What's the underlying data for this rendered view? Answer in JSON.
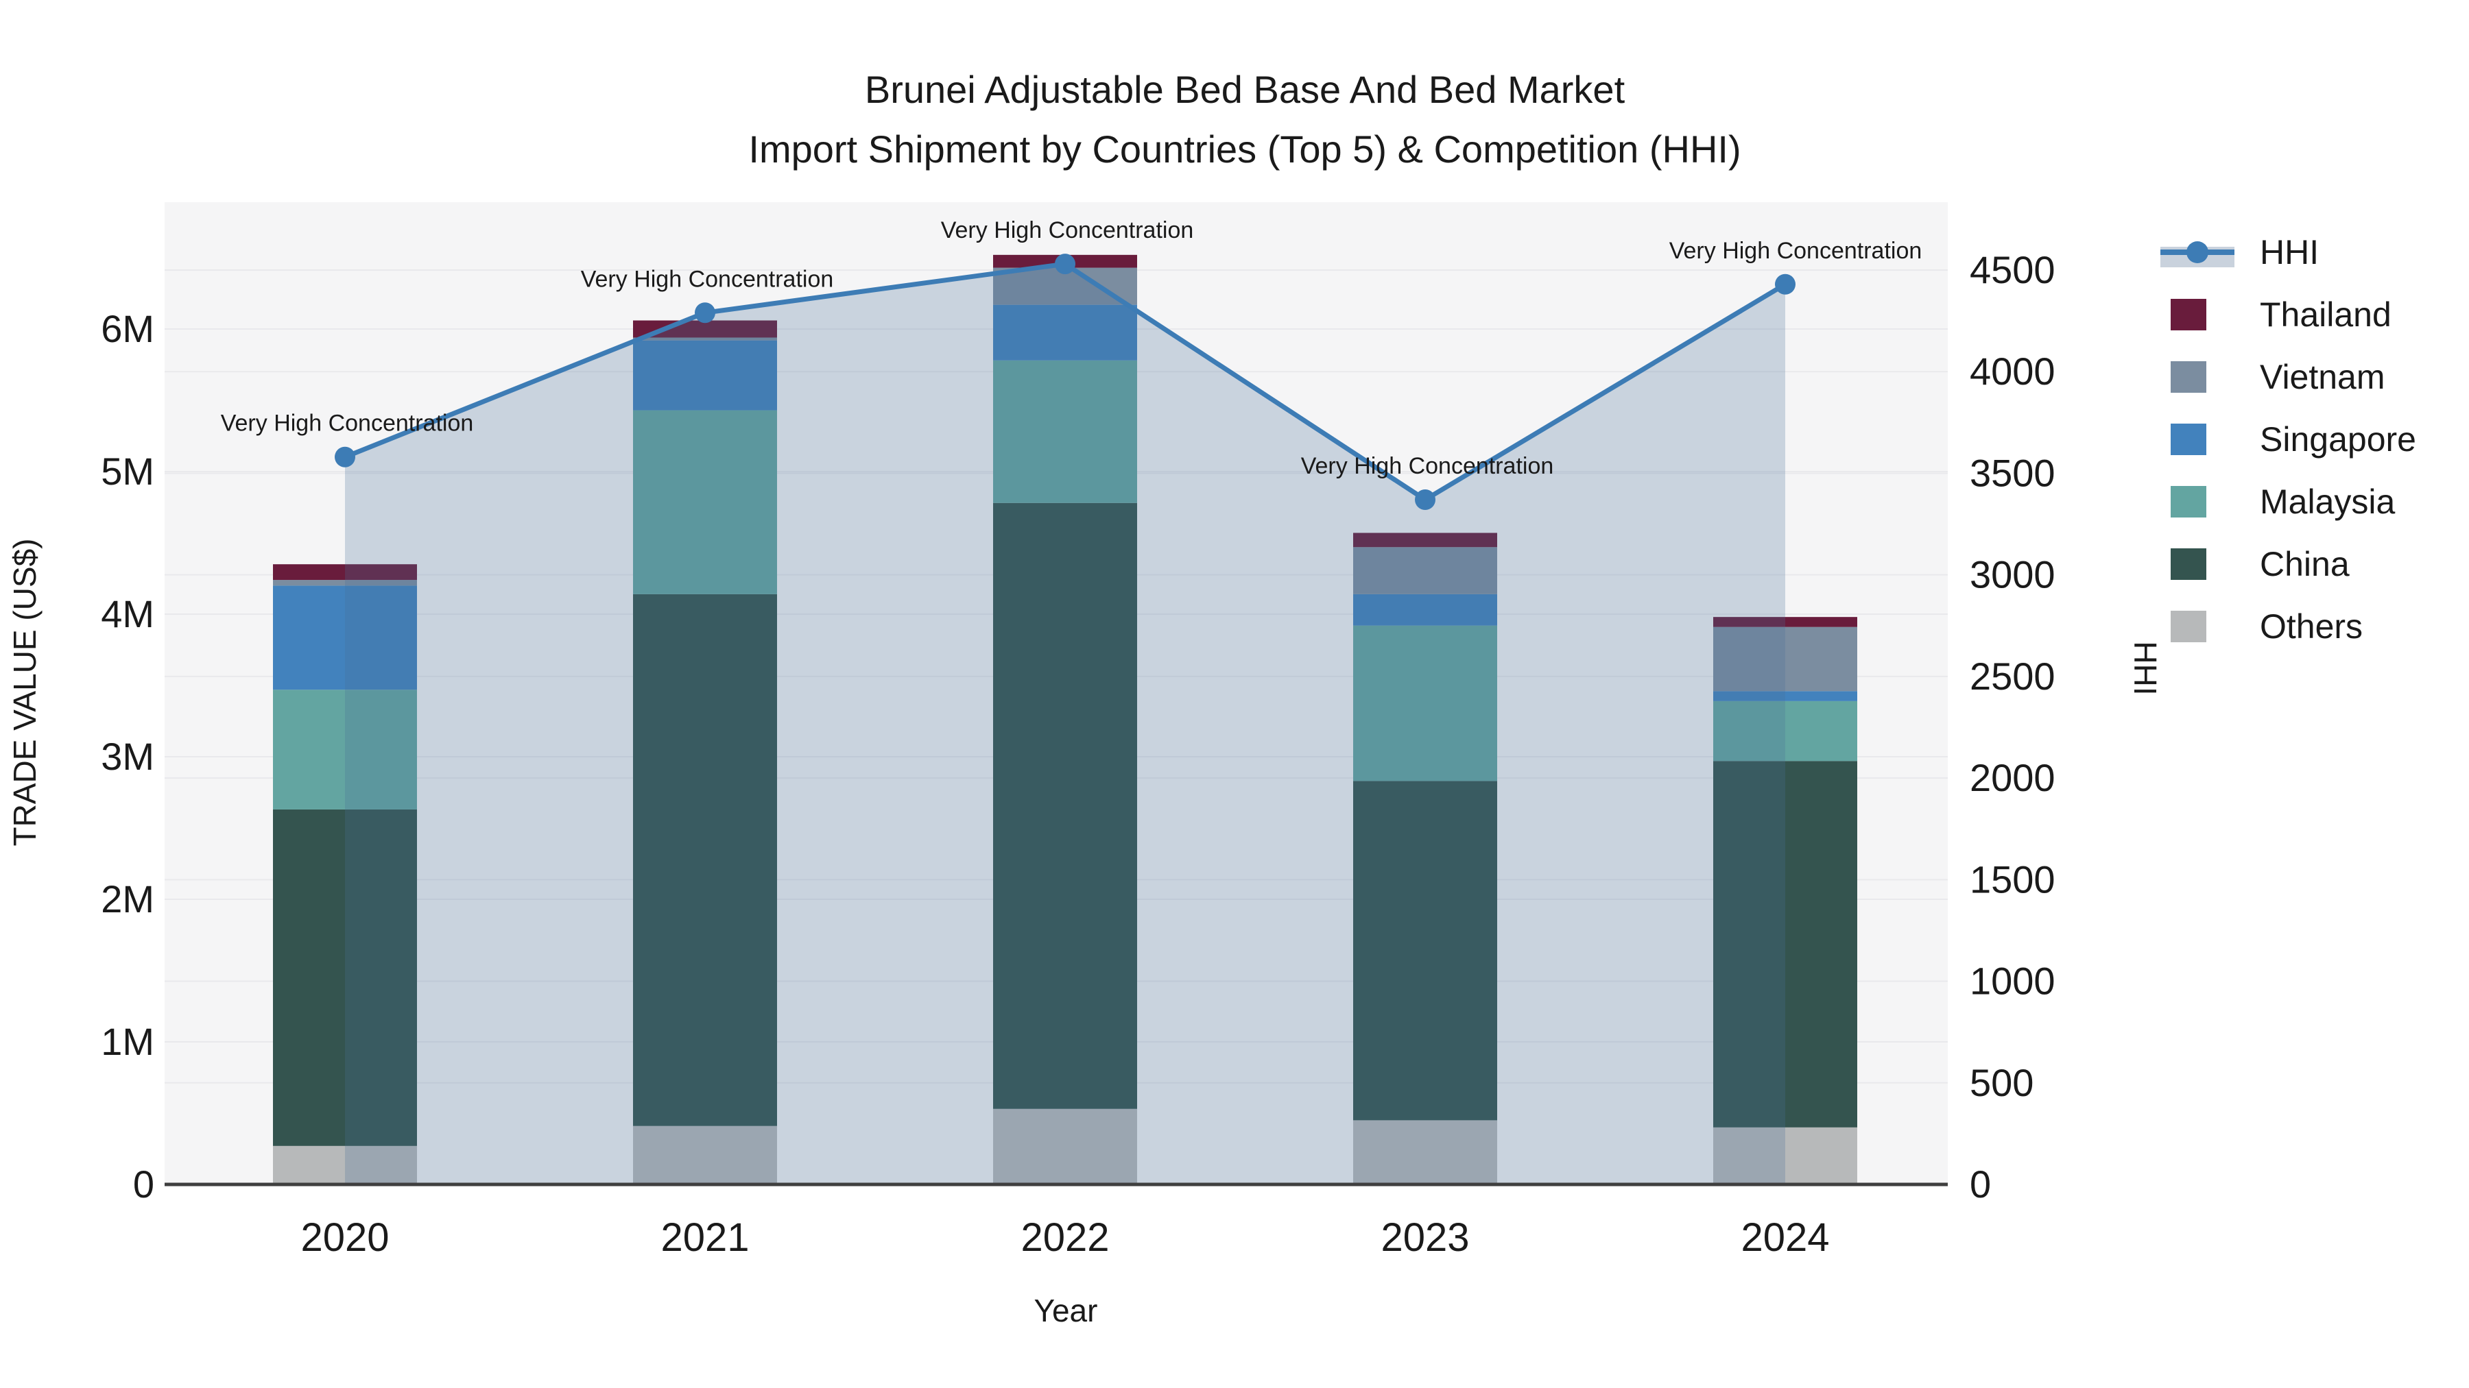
{
  "title": {
    "line1": "Brunei Adjustable Bed Base And Bed Market",
    "line2": "Import Shipment by Countries (Top 5) & Competition (HHI)"
  },
  "axes": {
    "left_label": "TRADE VALUE (US$)",
    "right_label": "HHI",
    "x_label": "Year",
    "left_ticks": [
      "0",
      "1M",
      "2M",
      "3M",
      "4M",
      "5M",
      "6M"
    ],
    "right_ticks": [
      "0",
      "500",
      "1000",
      "1500",
      "2000",
      "2500",
      "3000",
      "3500",
      "4000",
      "4500"
    ]
  },
  "legend": {
    "items": [
      {
        "label": "HHI",
        "type": "line",
        "color": "#3d7cb5"
      },
      {
        "label": "Thailand",
        "type": "swatch",
        "color": "#691c3c"
      },
      {
        "label": "Vietnam",
        "type": "swatch",
        "color": "#7b8da0"
      },
      {
        "label": "Singapore",
        "type": "swatch",
        "color": "#4282bd"
      },
      {
        "label": "Malaysia",
        "type": "swatch",
        "color": "#63a5a1"
      },
      {
        "label": "China",
        "type": "swatch",
        "color": "#34544f"
      },
      {
        "label": "Others",
        "type": "swatch",
        "color": "#b7b9ba"
      }
    ]
  },
  "colors": {
    "page_bg": "#ffffff",
    "plot_bg": "#f5f5f6",
    "grid": "#e9e9ec",
    "axis_line": "#3f3f3f",
    "hhi_line": "#3d7cb5",
    "hhi_fill": "rgba(70,110,150,0.25)",
    "hhi_legend_band": "#c9d2dd"
  },
  "chart_data": {
    "type": "bar+line",
    "title": "Brunei Adjustable Bed Base And Bed Market — Import Shipment by Countries (Top 5) & Competition (HHI)",
    "categories": [
      "2020",
      "2021",
      "2022",
      "2023",
      "2024"
    ],
    "xlabel": "Year",
    "ylabel_left": "TRADE VALUE (US$)",
    "ylabel_right": "HHI",
    "ylim_left_usd": [
      0,
      6800000
    ],
    "ylim_right_hhi": [
      0,
      4700
    ],
    "grid": true,
    "legend_position": "right",
    "stack_order_bottom_to_top": [
      "Others",
      "China",
      "Malaysia",
      "Singapore",
      "Vietnam",
      "Thailand"
    ],
    "series": [
      {
        "name": "Thailand",
        "color": "#691c3c",
        "values": [
          110000,
          120000,
          90000,
          100000,
          70000
        ]
      },
      {
        "name": "Vietnam",
        "color": "#7b8da0",
        "values": [
          40000,
          20000,
          260000,
          330000,
          450000
        ]
      },
      {
        "name": "Singapore",
        "color": "#4282bd",
        "values": [
          730000,
          490000,
          390000,
          220000,
          70000
        ]
      },
      {
        "name": "Malaysia",
        "color": "#63a5a1",
        "values": [
          840000,
          1290000,
          1000000,
          1090000,
          420000
        ]
      },
      {
        "name": "China",
        "color": "#34544f",
        "values": [
          2360000,
          3730000,
          4250000,
          2380000,
          2570000
        ]
      },
      {
        "name": "Others",
        "color": "#b7b9ba",
        "values": [
          270000,
          410000,
          530000,
          450000,
          400000
        ]
      }
    ],
    "bar_totals_usd": [
      4350000,
      6060000,
      6520000,
      4570000,
      3980000
    ],
    "hhi_line": {
      "name": "HHI",
      "color": "#3d7cb5",
      "values": [
        3580,
        4290,
        4530,
        3370,
        4430
      ]
    },
    "annotations": [
      {
        "year": "2020",
        "text": "Very High Concentration"
      },
      {
        "year": "2021",
        "text": "Very High Concentration"
      },
      {
        "year": "2022",
        "text": "Very High Concentration"
      },
      {
        "year": "2023",
        "text": "Very High Concentration"
      },
      {
        "year": "2024",
        "text": "Very High Concentration"
      }
    ]
  }
}
